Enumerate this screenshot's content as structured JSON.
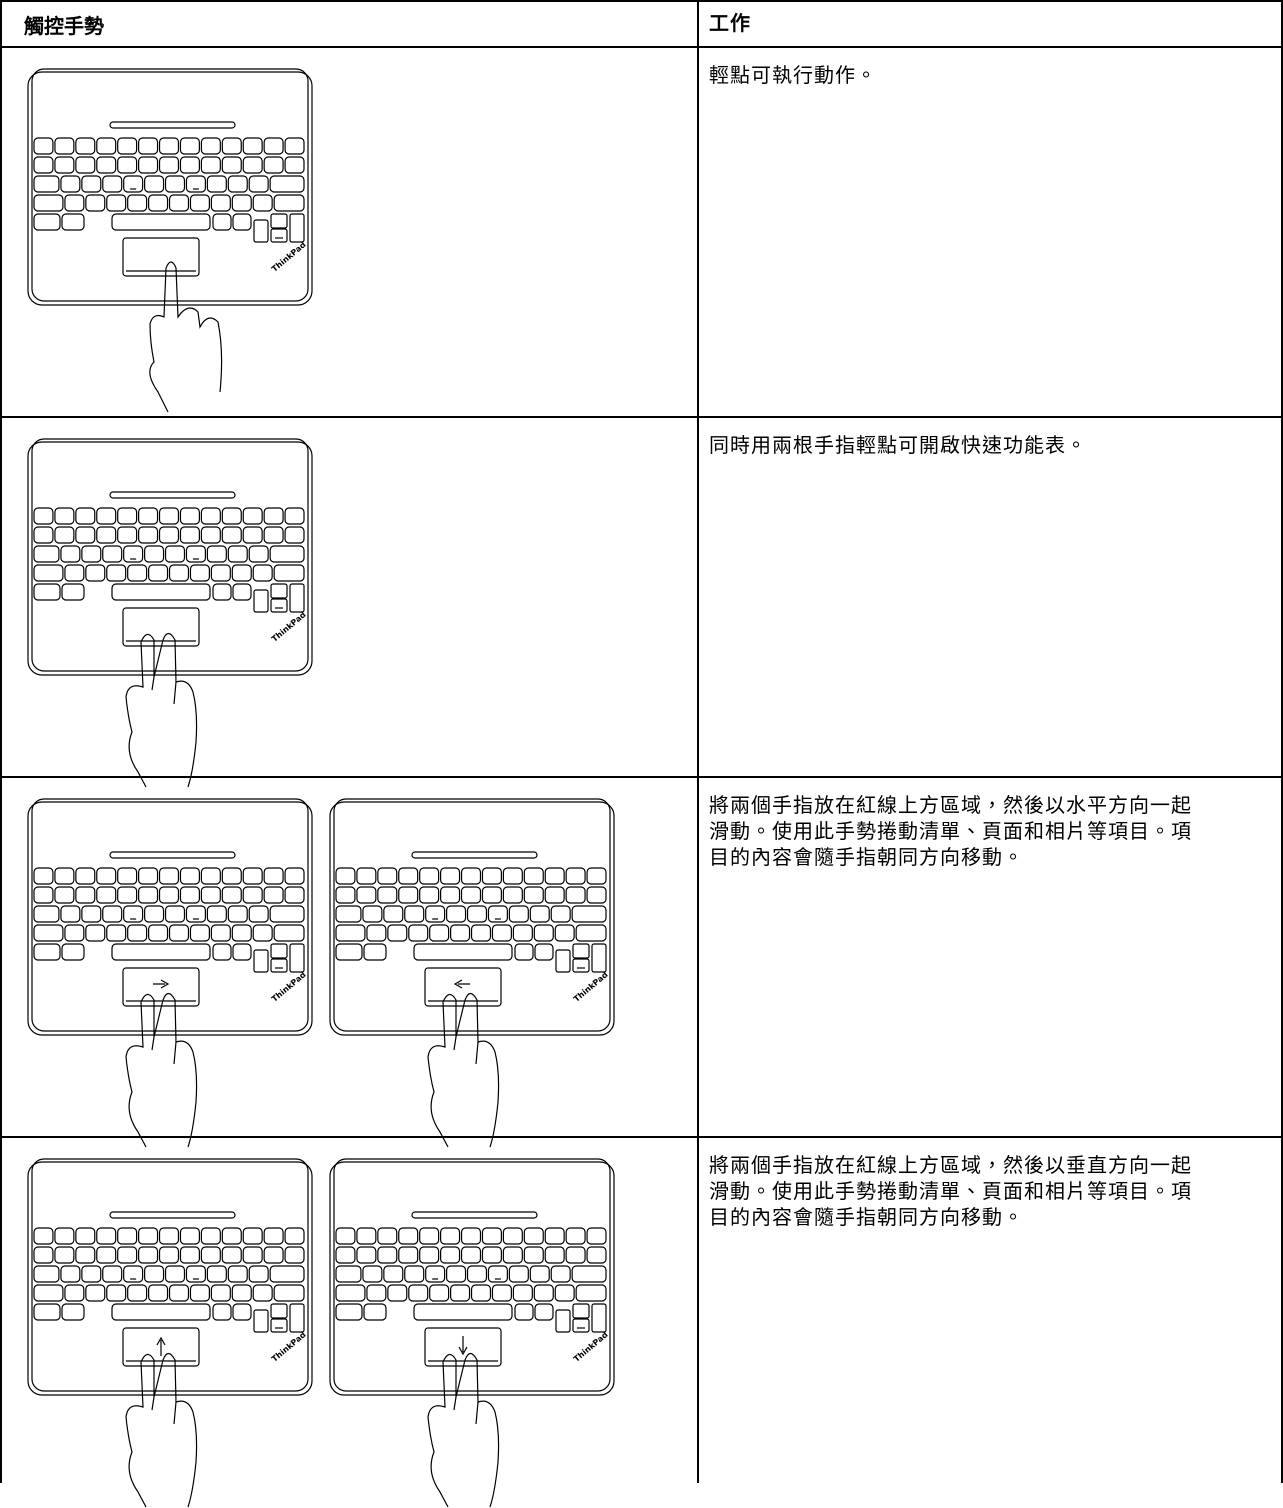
{
  "table": {
    "header": [
      "觸控手勢",
      "工作"
    ],
    "rows": [
      {
        "action": [
          "輕點可執行動作。"
        ]
      },
      {
        "action": [
          "同時用兩根手指輕點可開啟快速功能表。"
        ]
      },
      {
        "action": [
          "將兩個手指放在紅線上方區域，然後以水平方向一起",
          "滑動。使用此手勢捲動清單、頁面和相片等項目。項",
          "目的內容會隨手指朝同方向移動。"
        ]
      },
      {
        "action": [
          "將兩個手指放在紅線上方區域，然後以垂直方向一起",
          "滑動。使用此手勢捲動清單、頁面和相片等項目。項",
          "目的內容會隨手指朝同方向移動。"
        ]
      }
    ],
    "logo": "ThinkPad"
  }
}
